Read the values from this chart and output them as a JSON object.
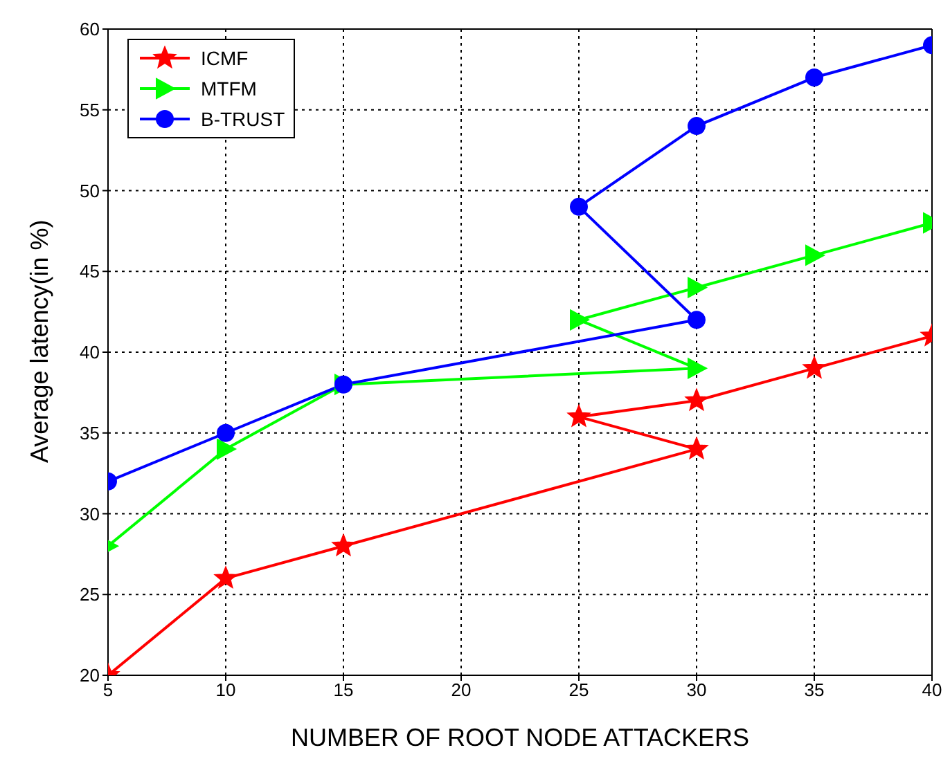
{
  "chart_data": {
    "type": "line",
    "xlabel": "NUMBER OF ROOT NODE ATTACKERS",
    "ylabel": "Average latency(in %)",
    "xlim": [
      5,
      40
    ],
    "xticks": [
      5,
      10,
      15,
      20,
      25,
      30,
      35,
      40
    ],
    "ylim": [
      20,
      60
    ],
    "yticks": [
      20,
      25,
      30,
      35,
      40,
      45,
      50,
      55,
      60
    ],
    "grid": true,
    "legend": "top left",
    "line_style": "solid",
    "series": [
      {
        "name": "ICMF",
        "color": "#ff0000",
        "marker": "star",
        "x": [
          5,
          10,
          15,
          30,
          25,
          30,
          35,
          40
        ],
        "values": [
          20,
          26,
          28,
          34,
          36,
          37,
          39,
          41
        ]
      },
      {
        "name": "MTFM",
        "color": "#00ff00",
        "marker": "triangle",
        "x": [
          5,
          10,
          15,
          30,
          25,
          30,
          35,
          40
        ],
        "values": [
          28,
          34,
          38,
          39,
          42,
          44,
          46,
          48
        ]
      },
      {
        "name": "B-TRUST",
        "color": "#0000ff",
        "marker": "circle",
        "x": [
          5,
          10,
          15,
          30,
          25,
          30,
          35,
          40
        ],
        "values": [
          32,
          35,
          38,
          42,
          49,
          54,
          57,
          59
        ]
      }
    ]
  }
}
